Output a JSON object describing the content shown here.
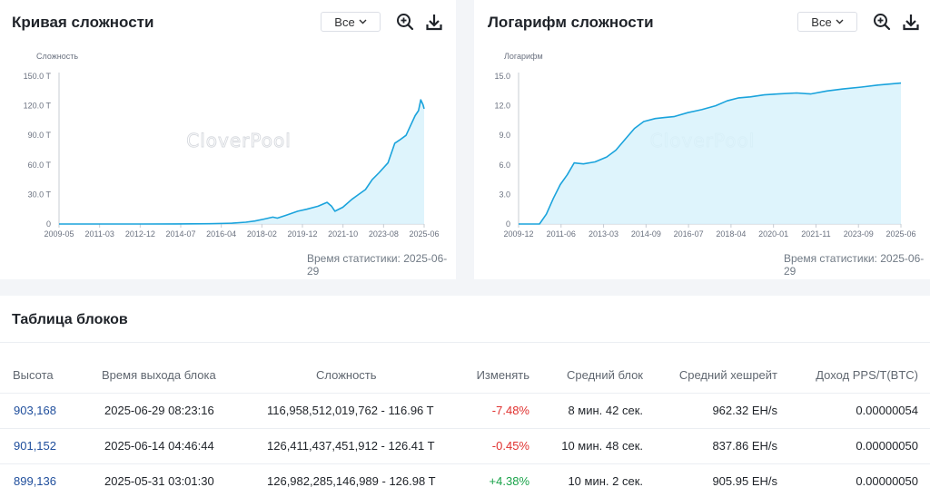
{
  "difficulty_chart": {
    "title": "Кривая сложности",
    "range_label": "Все",
    "stat_time": "Время статистики: 2025-06-29",
    "watermark": "CloverPool",
    "chart_data": {
      "type": "area",
      "ylabel": "Сложность",
      "ylim": [
        0,
        150
      ],
      "y_ticks": [
        "0",
        "30.0 T",
        "60.0 T",
        "90.0 T",
        "120.0 T",
        "150.0 T"
      ],
      "x_ticks": [
        "2009-05",
        "2011-03",
        "2012-12",
        "2014-07",
        "2016-04",
        "2018-02",
        "2019-12",
        "2021-10",
        "2023-08",
        "2025-06"
      ],
      "x_range": [
        2009.33,
        2025.5
      ],
      "series": [
        {
          "name": "Сложность",
          "x": [
            2009.33,
            2011.0,
            2013.0,
            2014.5,
            2016.0,
            2017.0,
            2017.6,
            2018.0,
            2018.4,
            2018.8,
            2019.0,
            2019.4,
            2019.9,
            2020.3,
            2020.8,
            2021.2,
            2021.4,
            2021.55,
            2021.9,
            2022.3,
            2022.6,
            2022.9,
            2023.2,
            2023.5,
            2023.9,
            2024.2,
            2024.4,
            2024.7,
            2024.9,
            2025.1,
            2025.25,
            2025.35,
            2025.45,
            2025.5
          ],
          "values": [
            0,
            0,
            0,
            0.1,
            0.3,
            0.8,
            1.8,
            3,
            5,
            7,
            6,
            9,
            13,
            15,
            18,
            22,
            18,
            13,
            17,
            25,
            30,
            35,
            45,
            52,
            62,
            82,
            85,
            90,
            100,
            110,
            115,
            126,
            121,
            117
          ]
        }
      ]
    }
  },
  "log_chart": {
    "title": "Логарифм сложности",
    "range_label": "Все",
    "stat_time": "Время статистики: 2025-06-29",
    "watermark": "CloverPool",
    "chart_data": {
      "type": "area",
      "ylabel": "Логарифм",
      "ylim": [
        0,
        15
      ],
      "y_ticks": [
        "0",
        "3.0",
        "6.0",
        "9.0",
        "12.0",
        "15.0"
      ],
      "x_ticks": [
        "2009-12",
        "2011-06",
        "2013-03",
        "2014-09",
        "2016-07",
        "2018-04",
        "2020-01",
        "2021-11",
        "2023-09",
        "2025-06"
      ],
      "x_range": [
        2009.0,
        2025.5
      ],
      "series": [
        {
          "name": "Логарифм",
          "x": [
            2009.0,
            2009.9,
            2010.2,
            2010.5,
            2010.8,
            2011.1,
            2011.4,
            2011.8,
            2012.3,
            2012.8,
            2013.2,
            2013.6,
            2014.0,
            2014.4,
            2014.9,
            2015.3,
            2015.7,
            2016.3,
            2016.9,
            2017.5,
            2018.0,
            2018.5,
            2019.0,
            2019.6,
            2020.2,
            2021.0,
            2021.6,
            2022.3,
            2023.0,
            2023.8,
            2024.5,
            2025.0,
            2025.5
          ],
          "values": [
            0,
            0,
            1.0,
            2.6,
            4.0,
            5.0,
            6.2,
            6.1,
            6.3,
            6.8,
            7.5,
            8.6,
            9.7,
            10.4,
            10.7,
            10.8,
            10.9,
            11.3,
            11.6,
            12.0,
            12.5,
            12.8,
            12.9,
            13.1,
            13.2,
            13.3,
            13.2,
            13.5,
            13.7,
            13.9,
            14.1,
            14.2,
            14.3
          ]
        }
      ]
    }
  },
  "blocks_table": {
    "title": "Таблица блоков",
    "headers": {
      "height": "Высота",
      "time": "Время выхода блока",
      "difficulty": "Сложность",
      "change": "Изменять",
      "avg_block": "Средний блок",
      "avg_hashrate": "Средний хешрейт",
      "income": "Доход PPS/T(BTC)"
    },
    "rows": [
      {
        "height": "903,168",
        "time": "2025-06-29 08:23:16",
        "difficulty": "116,958,512,019,762 - 116.96 T",
        "change": "-7.48%",
        "avg_block": "8 мин. 42 сек.",
        "avg_hashrate": "962.32 EH/s",
        "income": "0.00000054"
      },
      {
        "height": "901,152",
        "time": "2025-06-14 04:46:44",
        "difficulty": "126,411,437,451,912 - 126.41 T",
        "change": "-0.45%",
        "avg_block": "10 мин. 48 сек.",
        "avg_hashrate": "837.86 EH/s",
        "income": "0.00000050"
      },
      {
        "height": "899,136",
        "time": "2025-05-31 03:01:30",
        "difficulty": "126,982,285,146,989 - 126.98 T",
        "change": "+4.38%",
        "avg_block": "10 мин. 2 сек.",
        "avg_hashrate": "905.95 EH/s",
        "income": "0.00000050"
      }
    ]
  },
  "colors": {
    "line": "#1aa3dc",
    "fill": "#d8f2fb",
    "negative": "#e0312f",
    "positive": "#1aa34a",
    "link": "#1f4e9c"
  },
  "icons": [
    "zoom-in-icon",
    "download-icon",
    "chevron-down-icon"
  ]
}
